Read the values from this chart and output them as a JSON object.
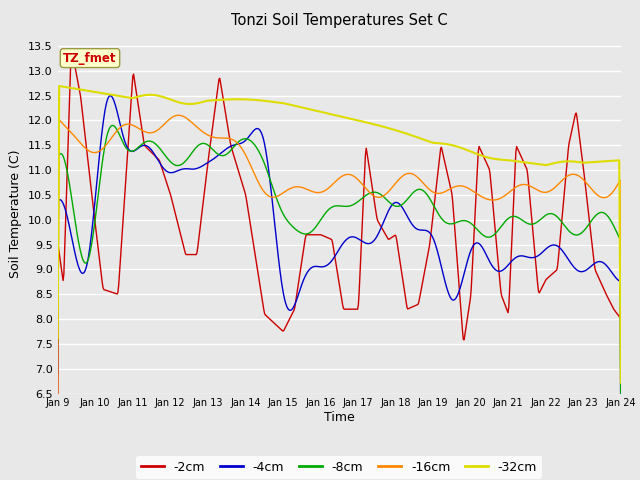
{
  "title": "Tonzi Soil Temperatures Set C",
  "xlabel": "Time",
  "ylabel": "Soil Temperature (C)",
  "ylim": [
    6.5,
    13.75
  ],
  "yticks": [
    6.5,
    7.0,
    7.5,
    8.0,
    8.5,
    9.0,
    9.5,
    10.0,
    10.5,
    11.0,
    11.5,
    12.0,
    12.5,
    13.0,
    13.5
  ],
  "xtick_labels": [
    "Jan 9",
    "Jan 10",
    "Jan 11",
    "Jan 12",
    "Jan 13",
    "Jan 14",
    "Jan 15",
    "Jan 16",
    "Jan 17",
    "Jan 18",
    "Jan 19",
    "Jan 20",
    "Jan 21",
    "Jan 22",
    "Jan 23",
    "Jan 24"
  ],
  "colors": {
    "-2cm": "#cc0000",
    "-4cm": "#0000cc",
    "-8cm": "#00aa00",
    "-16cm": "#ff8800",
    "-32cm": "#dddd00"
  },
  "annotation_text": "TZ_fmet",
  "annotation_color": "#cc0000",
  "annotation_bg": "#ffffcc",
  "annotation_border": "#999944",
  "fig_bg": "#e8e8e8",
  "plot_bg": "#e8e8e8",
  "grid_color": "white",
  "legend_bg": "white"
}
